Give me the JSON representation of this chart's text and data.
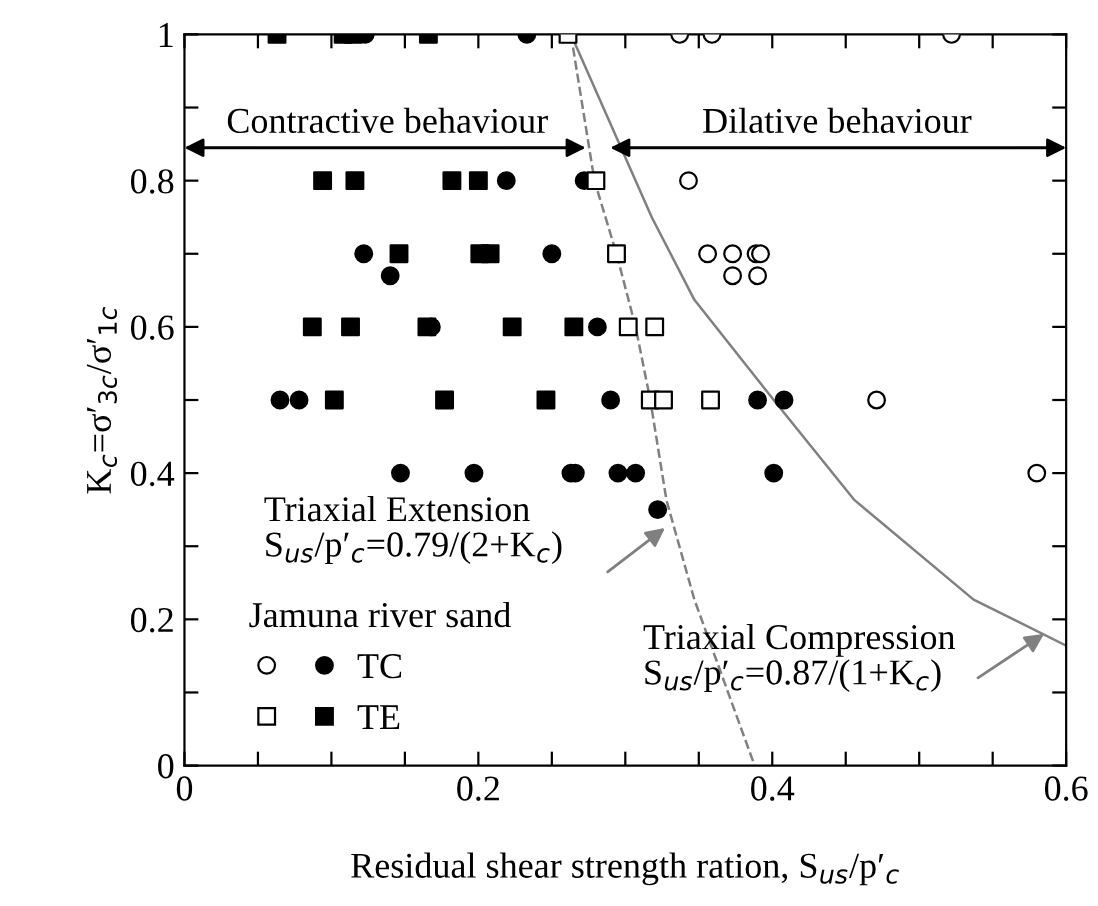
{
  "chart_data": {
    "type": "scatter",
    "xlabel": "Residual shear strength ration, S$_{us}$/p′$_{c}$",
    "ylabel": "K$_{c}$=σ′$_{3c}$/σ′$_{1c}$",
    "legend_title": "Jamuna river sand",
    "xlim": [
      0,
      0.6
    ],
    "ylim": [
      0,
      1
    ],
    "xticks": [
      0,
      {
        "value": 0.05,
        "label": null
      },
      {
        "value": 0.1,
        "label": null
      },
      {
        "value": 0.15,
        "label": null
      },
      0.2,
      {
        "value": 0.25,
        "label": null
      },
      {
        "value": 0.3,
        "label": null
      },
      {
        "value": 0.35,
        "label": null
      },
      0.4,
      {
        "value": 0.45,
        "label": null
      },
      {
        "value": 0.5,
        "label": null
      },
      {
        "value": 0.55,
        "label": null
      },
      0.6
    ],
    "yticks": [
      0,
      {
        "value": 0.1,
        "label": null
      },
      0.2,
      {
        "value": 0.3,
        "label": null
      },
      0.4,
      {
        "value": 0.5,
        "label": null
      },
      0.6,
      {
        "value": 0.7,
        "label": null
      },
      0.8,
      {
        "value": 0.9,
        "label": null
      },
      1
    ],
    "grid": false,
    "legend": "bottom left",
    "series": [
      {
        "color": "#ffffff",
        "marker": "circle",
        "x": [
          0.337,
          0.359,
          0.522,
          0.343,
          0.356,
          0.373,
          0.389,
          0.392,
          0.373,
          0.39,
          0.471,
          0.58
        ],
        "values": [
          1,
          1,
          1,
          0.8,
          0.7,
          0.7,
          0.7,
          0.7,
          0.67,
          0.67,
          0.5,
          0.4
        ]
      },
      {
        "name": "TC",
        "color": "#000000",
        "marker": "circle",
        "x": [
          0.123,
          0.233,
          0.219,
          0.272,
          0.122,
          0.25,
          0.14,
          0.168,
          0.281,
          0.065,
          0.078,
          0.29,
          0.39,
          0.408,
          0.147,
          0.197,
          0.263,
          0.266,
          0.295,
          0.307,
          0.401,
          0.322
        ],
        "values": [
          1,
          1,
          0.8,
          0.8,
          0.7,
          0.7,
          0.67,
          0.6,
          0.6,
          0.5,
          0.5,
          0.5,
          0.5,
          0.5,
          0.4,
          0.4,
          0.4,
          0.4,
          0.4,
          0.4,
          0.4,
          0.35
        ]
      },
      {
        "color": "#ffffff",
        "marker": "square",
        "x": [
          0.261,
          0.28,
          0.294,
          0.302,
          0.32,
          0.317,
          0.326,
          0.358
        ],
        "values": [
          1,
          0.8,
          0.7,
          0.6,
          0.6,
          0.5,
          0.5,
          0.5
        ]
      },
      {
        "name": "TE",
        "color": "#000000",
        "marker": "square",
        "x": [
          0.063,
          0.108,
          0.115,
          0.166,
          0.094,
          0.116,
          0.182,
          0.2,
          0.146,
          0.201,
          0.208,
          0.087,
          0.113,
          0.165,
          0.223,
          0.265,
          0.102,
          0.177,
          0.246
        ],
        "values": [
          1,
          1,
          1,
          1,
          0.8,
          0.8,
          0.8,
          0.8,
          0.7,
          0.7,
          0.7,
          0.6,
          0.6,
          0.6,
          0.6,
          0.6,
          0.5,
          0.5,
          0.5
        ]
      },
      {
        "type": "line",
        "color": "#808080",
        "line_style": "dashed",
        "x": [
          0.263,
          0.279,
          0.294,
          0.307,
          0.317,
          0.328,
          0.347,
          0.388
        ],
        "values": [
          1,
          0.8,
          0.7,
          0.6,
          0.5,
          0.363,
          0.227,
          0
        ]
      },
      {
        "type": "line",
        "color": "#808080",
        "line_style": "solid",
        "x": [
          0.263,
          0.285,
          0.318,
          0.347,
          0.401,
          0.456,
          0.537,
          0.6
        ],
        "values": [
          1,
          0.9,
          0.75,
          0.637,
          0.5,
          0.363,
          0.227,
          0.164
        ]
      }
    ],
    "annotations": [
      "Contractive behaviour",
      "Dilative behaviour",
      "Triaxial Extension\nS$_{us}$/p′$_{c}$=0.79/(2+K$_{c}$)",
      "Triaxial Compression\nS$_{us}$/p′$_{c}$=0.87/(1+K$_{c}$)"
    ]
  }
}
